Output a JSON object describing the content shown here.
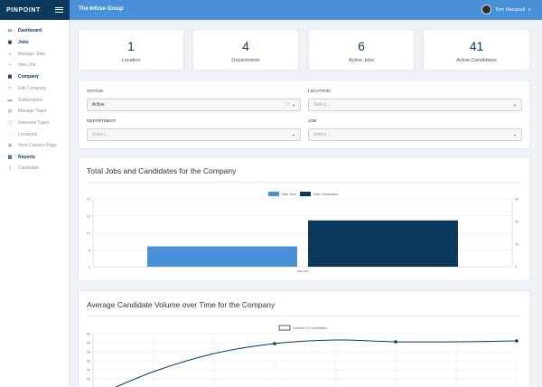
{
  "brand": {
    "logo": "PINPOINT"
  },
  "header": {
    "org_name": "The Infuse Group",
    "user_name": "Tom Hacquoil"
  },
  "sidebar": {
    "items": [
      {
        "label": "Dashboard",
        "icon": "monitor-icon",
        "head": true
      },
      {
        "label": "Jobs",
        "icon": "briefcase-icon",
        "head": true
      },
      {
        "label": "Manage Jobs",
        "icon": "list-icon",
        "head": false
      },
      {
        "label": "New Job",
        "icon": "plus-icon",
        "head": false
      },
      {
        "label": "Company",
        "icon": "building-icon",
        "head": true
      },
      {
        "label": "Edit Company",
        "icon": "edit-icon",
        "head": false
      },
      {
        "label": "Subscription",
        "icon": "card-icon",
        "head": false
      },
      {
        "label": "Manage Team",
        "icon": "team-icon",
        "head": false
      },
      {
        "label": "Interview Types",
        "icon": "document-icon",
        "head": false
      },
      {
        "label": "Locations",
        "icon": "pin-icon",
        "head": false
      },
      {
        "label": "View Careers Page",
        "icon": "eye-icon",
        "head": false
      },
      {
        "label": "Reports",
        "icon": "chart-icon",
        "head": true
      },
      {
        "label": "Candidate",
        "icon": "user-icon",
        "head": false
      }
    ]
  },
  "stats": [
    {
      "value": "1",
      "label": "Location"
    },
    {
      "value": "4",
      "label": "Departments"
    },
    {
      "value": "6",
      "label": "Active Jobs"
    },
    {
      "value": "41",
      "label": "Active Candidates"
    }
  ],
  "filters": {
    "status": {
      "label": "STATUS",
      "value": "Active"
    },
    "location": {
      "label": "LOCATION",
      "placeholder": "Select..."
    },
    "department": {
      "label": "DEPARTMENT",
      "placeholder": "Select..."
    },
    "job": {
      "label": "JOB",
      "placeholder": "Select..."
    }
  },
  "chart1_title": "Total Jobs and Candidates for the Company",
  "chart2_title": "Average Candidate Volume over Time for the Company",
  "chart_data": [
    {
      "type": "bar",
      "categories": [
        "January"
      ],
      "series": [
        {
          "name": "Total Jobs",
          "values": [
            6
          ],
          "axis": "left",
          "color": "#4a90d9"
        },
        {
          "name": "Total Candidates",
          "values": [
            41
          ],
          "axis": "right",
          "color": "#0d3a5c"
        }
      ],
      "ylim_left": [
        0,
        20
      ],
      "yticks_left": [
        0,
        5,
        10,
        15,
        20
      ],
      "ylim_right": [
        0,
        60
      ],
      "yticks_right": [
        0,
        20,
        40,
        60
      ],
      "legend": "top-center",
      "grid": true
    },
    {
      "type": "line",
      "series": [
        {
          "name": "Number of Candidates",
          "color": "#0d3a5c"
        }
      ],
      "x_categories": 8,
      "points": [
        {
          "x": 0,
          "y": 10
        },
        {
          "x": 1,
          "y": 24
        },
        {
          "x": 2,
          "y": 34
        },
        {
          "x": 3,
          "y": 39.5
        },
        {
          "x": 4,
          "y": 41.5
        },
        {
          "x": 5,
          "y": 40.5
        },
        {
          "x": 6,
          "y": 40.5
        },
        {
          "x": 7,
          "y": 41
        }
      ],
      "markers": [
        3,
        5,
        7
      ],
      "ylim": [
        10,
        45
      ],
      "yticks": [
        10,
        15,
        20,
        25,
        30,
        35,
        40,
        45
      ],
      "legend": "top-center",
      "grid": true
    }
  ]
}
